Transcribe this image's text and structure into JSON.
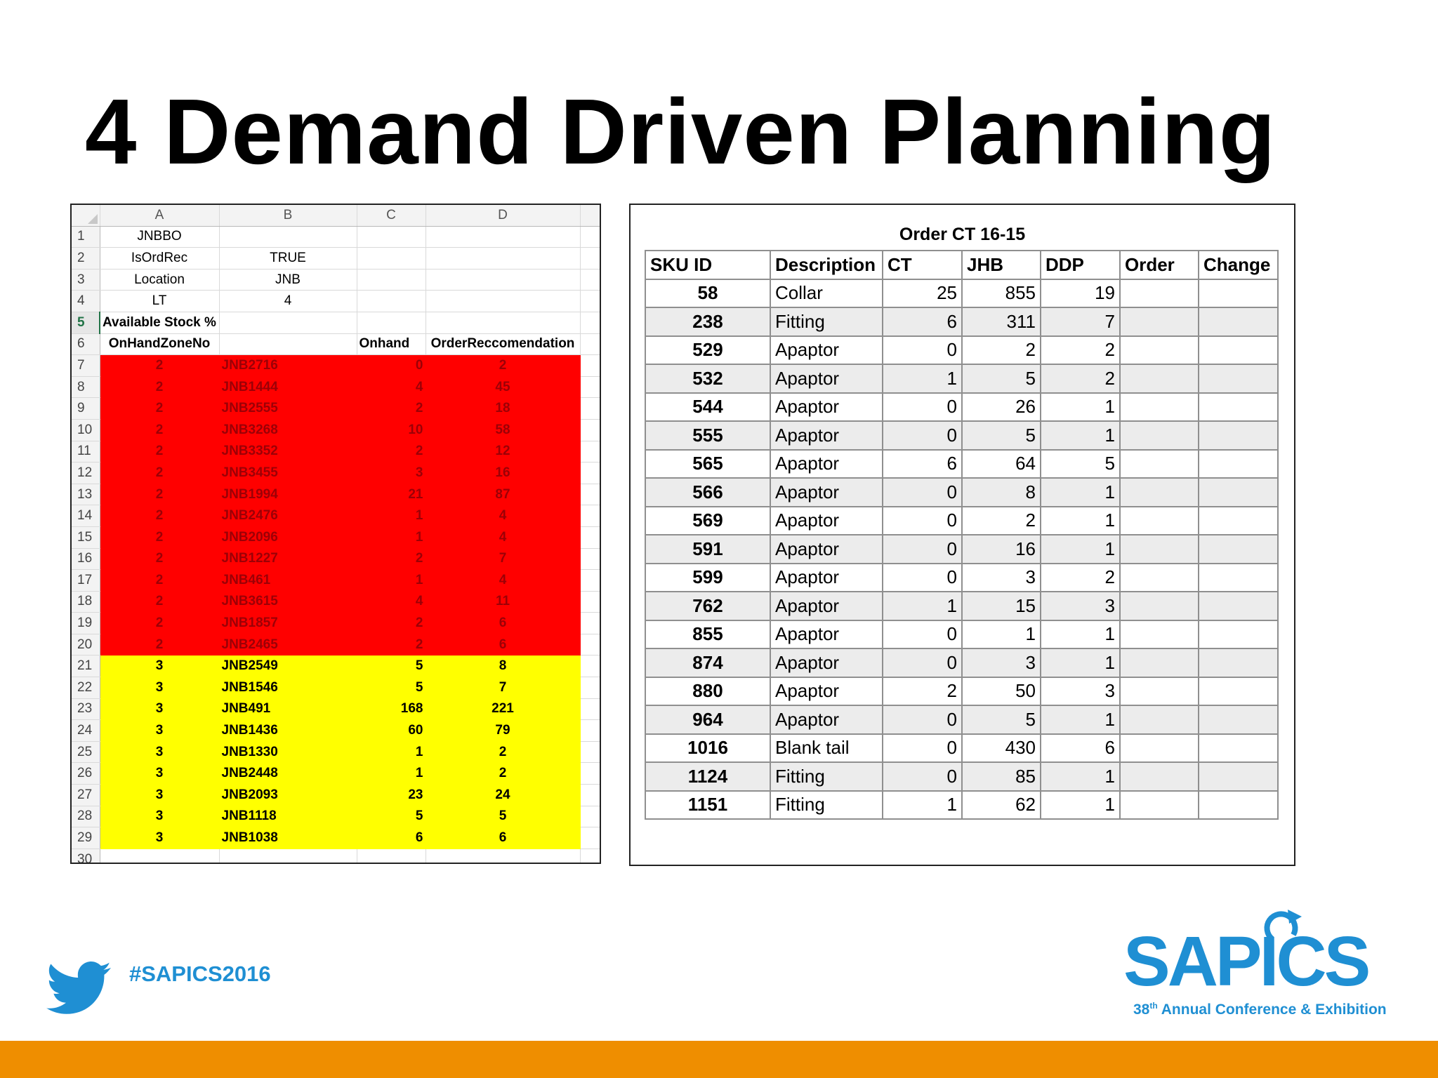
{
  "slide": {
    "title": "4 Demand Driven Planning",
    "hashtag": "#SAPICS2016",
    "logo": {
      "text": "SAPICS",
      "sub_ord": "38",
      "sup": "th",
      "sub_rest": " Annual Conference & Exhibition"
    },
    "colors": {
      "accent_blue": "#1f8fd3",
      "footer_orange": "#ef8e00",
      "zone_red": "#ff0000",
      "zone_yellow": "#ffff00"
    }
  },
  "spreadsheet": {
    "columns": [
      "A",
      "B",
      "C",
      "D"
    ],
    "header_rows": [
      {
        "row": "1",
        "a": "JNBBO",
        "b": "",
        "c": "",
        "d": ""
      },
      {
        "row": "2",
        "a": "IsOrdRec",
        "b": "TRUE",
        "c": "",
        "d": ""
      },
      {
        "row": "3",
        "a": "Location",
        "b": "JNB",
        "c": "",
        "d": ""
      },
      {
        "row": "4",
        "a": "LT",
        "b": "4",
        "c": "",
        "d": ""
      }
    ],
    "row5": {
      "row": "5",
      "label": "Available Stock %"
    },
    "row6": {
      "row": "6",
      "a": "OnHandZoneNo",
      "b": "",
      "c": "Onhand",
      "d": "OrderReccomendation"
    },
    "data_rows": [
      {
        "row": "7",
        "zone": "2",
        "sku": "JNB2716",
        "onhand": "0",
        "order": "2"
      },
      {
        "row": "8",
        "zone": "2",
        "sku": "JNB1444",
        "onhand": "4",
        "order": "45"
      },
      {
        "row": "9",
        "zone": "2",
        "sku": "JNB2555",
        "onhand": "2",
        "order": "18"
      },
      {
        "row": "10",
        "zone": "2",
        "sku": "JNB3268",
        "onhand": "10",
        "order": "58"
      },
      {
        "row": "11",
        "zone": "2",
        "sku": "JNB3352",
        "onhand": "2",
        "order": "12"
      },
      {
        "row": "12",
        "zone": "2",
        "sku": "JNB3455",
        "onhand": "3",
        "order": "16"
      },
      {
        "row": "13",
        "zone": "2",
        "sku": "JNB1994",
        "onhand": "21",
        "order": "87"
      },
      {
        "row": "14",
        "zone": "2",
        "sku": "JNB2476",
        "onhand": "1",
        "order": "4"
      },
      {
        "row": "15",
        "zone": "2",
        "sku": "JNB2096",
        "onhand": "1",
        "order": "4"
      },
      {
        "row": "16",
        "zone": "2",
        "sku": "JNB1227",
        "onhand": "2",
        "order": "7"
      },
      {
        "row": "17",
        "zone": "2",
        "sku": "JNB461",
        "onhand": "1",
        "order": "4"
      },
      {
        "row": "18",
        "zone": "2",
        "sku": "JNB3615",
        "onhand": "4",
        "order": "11"
      },
      {
        "row": "19",
        "zone": "2",
        "sku": "JNB1857",
        "onhand": "2",
        "order": "6"
      },
      {
        "row": "20",
        "zone": "2",
        "sku": "JNB2465",
        "onhand": "2",
        "order": "6"
      },
      {
        "row": "21",
        "zone": "3",
        "sku": "JNB2549",
        "onhand": "5",
        "order": "8"
      },
      {
        "row": "22",
        "zone": "3",
        "sku": "JNB1546",
        "onhand": "5",
        "order": "7"
      },
      {
        "row": "23",
        "zone": "3",
        "sku": "JNB491",
        "onhand": "168",
        "order": "221"
      },
      {
        "row": "24",
        "zone": "3",
        "sku": "JNB1436",
        "onhand": "60",
        "order": "79"
      },
      {
        "row": "25",
        "zone": "3",
        "sku": "JNB1330",
        "onhand": "1",
        "order": "2"
      },
      {
        "row": "26",
        "zone": "3",
        "sku": "JNB2448",
        "onhand": "1",
        "order": "2"
      },
      {
        "row": "27",
        "zone": "3",
        "sku": "JNB2093",
        "onhand": "23",
        "order": "24"
      },
      {
        "row": "28",
        "zone": "3",
        "sku": "JNB1118",
        "onhand": "5",
        "order": "5"
      },
      {
        "row": "29",
        "zone": "3",
        "sku": "JNB1038",
        "onhand": "6",
        "order": "6"
      }
    ],
    "last_row": "30"
  },
  "order_table": {
    "title": "Order CT 16-15",
    "headers": [
      "SKU ID",
      "Description",
      "CT",
      "JHB",
      "DDP",
      "Order",
      "Change"
    ],
    "rows": [
      {
        "sku": "58",
        "desc": "Collar",
        "ct": "25",
        "jhb": "855",
        "ddp": "19",
        "order": "",
        "change": ""
      },
      {
        "sku": "238",
        "desc": "Fitting",
        "ct": "6",
        "jhb": "311",
        "ddp": "7",
        "order": "",
        "change": ""
      },
      {
        "sku": "529",
        "desc": "Apaptor",
        "ct": "0",
        "jhb": "2",
        "ddp": "2",
        "order": "",
        "change": ""
      },
      {
        "sku": "532",
        "desc": "Apaptor",
        "ct": "1",
        "jhb": "5",
        "ddp": "2",
        "order": "",
        "change": ""
      },
      {
        "sku": "544",
        "desc": "Apaptor",
        "ct": "0",
        "jhb": "26",
        "ddp": "1",
        "order": "",
        "change": ""
      },
      {
        "sku": "555",
        "desc": "Apaptor",
        "ct": "0",
        "jhb": "5",
        "ddp": "1",
        "order": "",
        "change": ""
      },
      {
        "sku": "565",
        "desc": "Apaptor",
        "ct": "6",
        "jhb": "64",
        "ddp": "5",
        "order": "",
        "change": ""
      },
      {
        "sku": "566",
        "desc": "Apaptor",
        "ct": "0",
        "jhb": "8",
        "ddp": "1",
        "order": "",
        "change": ""
      },
      {
        "sku": "569",
        "desc": "Apaptor",
        "ct": "0",
        "jhb": "2",
        "ddp": "1",
        "order": "",
        "change": ""
      },
      {
        "sku": "591",
        "desc": "Apaptor",
        "ct": "0",
        "jhb": "16",
        "ddp": "1",
        "order": "",
        "change": ""
      },
      {
        "sku": "599",
        "desc": "Apaptor",
        "ct": "0",
        "jhb": "3",
        "ddp": "2",
        "order": "",
        "change": ""
      },
      {
        "sku": "762",
        "desc": "Apaptor",
        "ct": "1",
        "jhb": "15",
        "ddp": "3",
        "order": "",
        "change": ""
      },
      {
        "sku": "855",
        "desc": "Apaptor",
        "ct": "0",
        "jhb": "1",
        "ddp": "1",
        "order": "",
        "change": ""
      },
      {
        "sku": "874",
        "desc": "Apaptor",
        "ct": "0",
        "jhb": "3",
        "ddp": "1",
        "order": "",
        "change": ""
      },
      {
        "sku": "880",
        "desc": "Apaptor",
        "ct": "2",
        "jhb": "50",
        "ddp": "3",
        "order": "",
        "change": ""
      },
      {
        "sku": "964",
        "desc": "Apaptor",
        "ct": "0",
        "jhb": "5",
        "ddp": "1",
        "order": "",
        "change": ""
      },
      {
        "sku": "1016",
        "desc": "Blank tail",
        "ct": "0",
        "jhb": "430",
        "ddp": "6",
        "order": "",
        "change": ""
      },
      {
        "sku": "1124",
        "desc": "Fitting",
        "ct": "0",
        "jhb": "85",
        "ddp": "1",
        "order": "",
        "change": ""
      },
      {
        "sku": "1151",
        "desc": "Fitting",
        "ct": "1",
        "jhb": "62",
        "ddp": "1",
        "order": "",
        "change": ""
      }
    ]
  }
}
